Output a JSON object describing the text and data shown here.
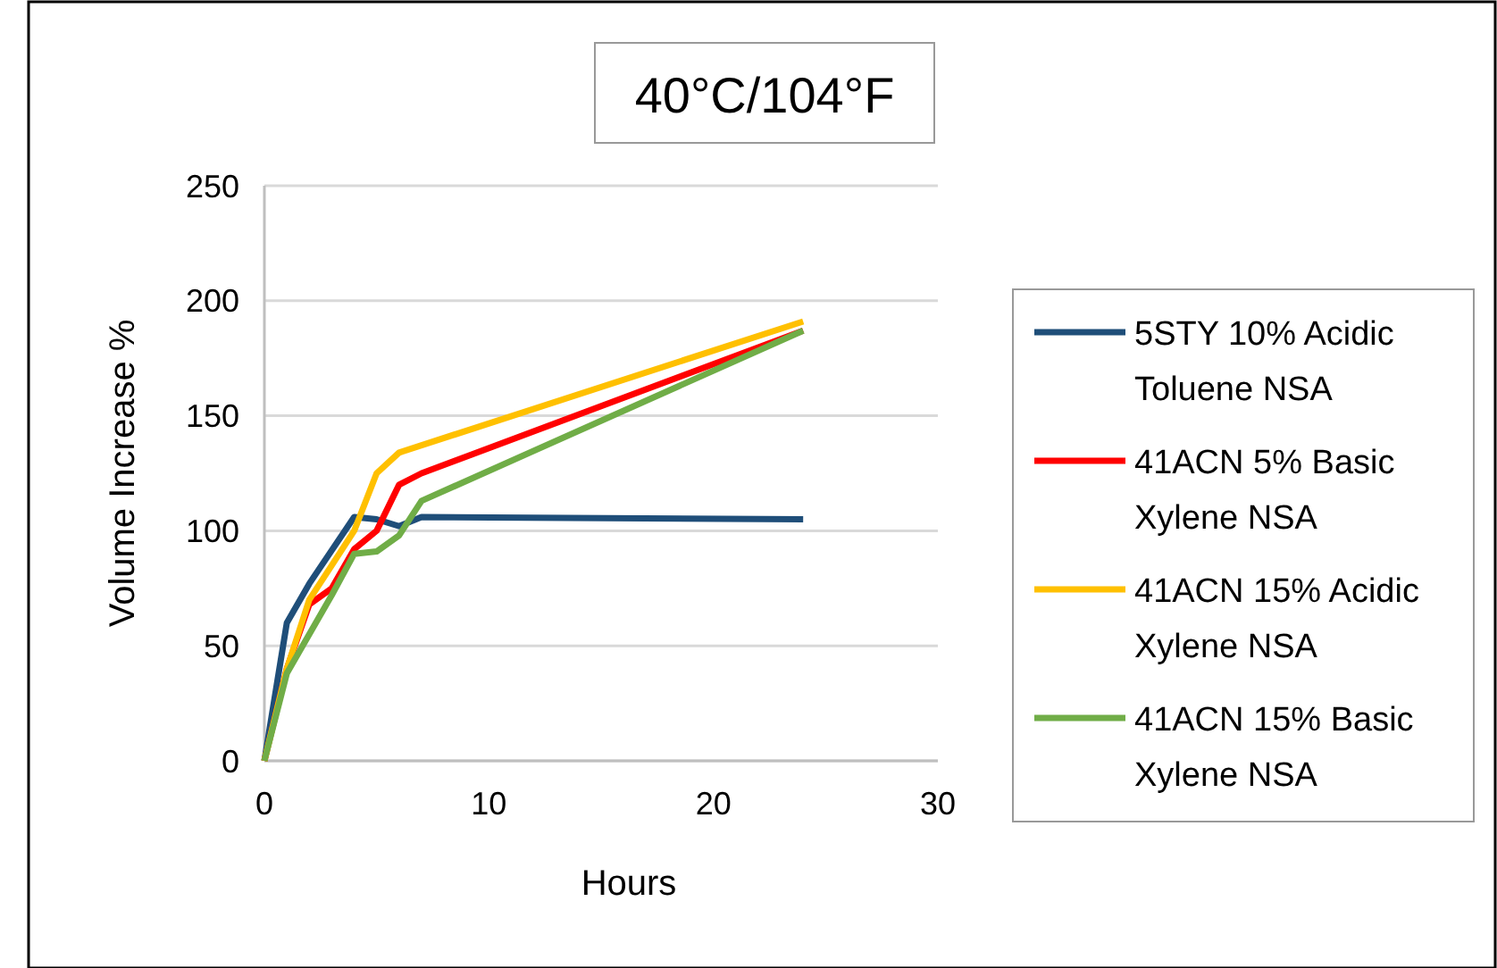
{
  "chart_data": {
    "type": "line",
    "title": "40°C/104°F",
    "xlabel": "Hours",
    "ylabel": "Volume Increase %",
    "xlim": [
      0,
      30
    ],
    "xticks": [
      0,
      10,
      20,
      30
    ],
    "ylim": [
      0,
      250
    ],
    "yticks": [
      0,
      50,
      100,
      150,
      200,
      250
    ],
    "grid": "y",
    "legend": "right",
    "marker": "none",
    "line_style": "solid",
    "series": [
      {
        "name": "5STY 10% Acidic Toluene NSA",
        "color": "#1f4e79",
        "x": [
          0,
          1,
          2,
          4,
          5,
          6,
          7,
          24
        ],
        "values": [
          0,
          60,
          77,
          106,
          105,
          102,
          106,
          105
        ]
      },
      {
        "name": "41ACN 5% Basic Xylene NSA",
        "color": "#ff0000",
        "x": [
          0,
          1,
          2,
          3,
          4,
          5,
          6,
          7,
          24
        ],
        "values": [
          0,
          40,
          68,
          75,
          92,
          100,
          120,
          125,
          187
        ]
      },
      {
        "name": "41ACN 15% Acidic Xylene NSA",
        "color": "#ffc000",
        "x": [
          0,
          1,
          2,
          3,
          4,
          5,
          6,
          24
        ],
        "values": [
          0,
          40,
          70,
          85,
          100,
          125,
          134,
          191
        ]
      },
      {
        "name": "41ACN 15% Basic Xylene NSA",
        "color": "#70ad47",
        "x": [
          0,
          1,
          2,
          3,
          4,
          5,
          6,
          7,
          24
        ],
        "values": [
          0,
          38,
          55,
          72,
          90,
          91,
          98,
          113,
          187
        ]
      }
    ]
  }
}
